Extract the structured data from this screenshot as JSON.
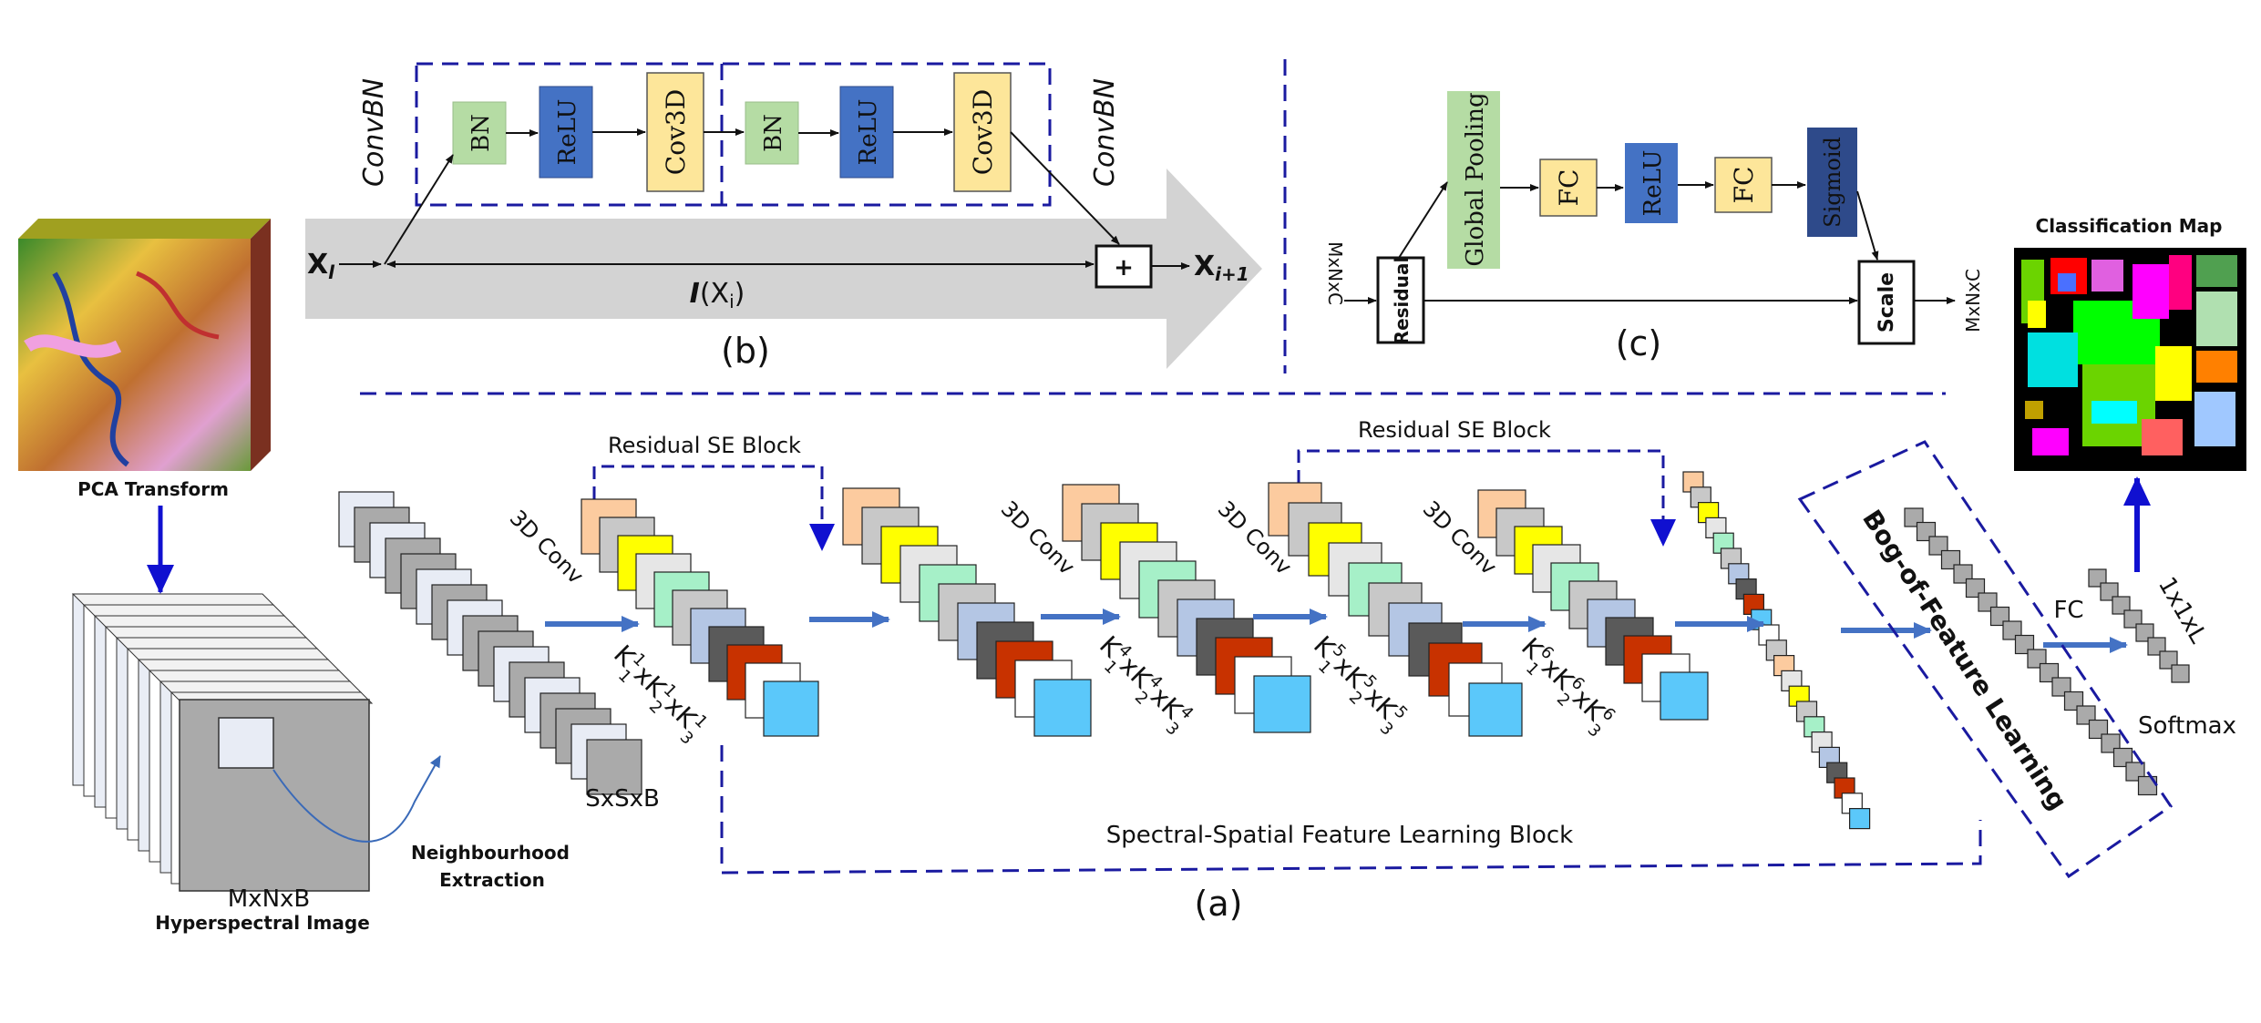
{
  "panel_b": {
    "left_label": "ConvBN",
    "right_label": "ConvBN",
    "blocks": [
      "BN",
      "ReLU",
      "Cov3D",
      "BN",
      "ReLU",
      "Cov3D"
    ],
    "input_main": "X",
    "input_sub": "l",
    "output_main": "X",
    "output_sub": "i+1",
    "identity_main": "I",
    "identity_mid": "(X",
    "identity_sub": "i",
    "identity_end": ")",
    "sum_symbol": "+",
    "caption": "(b)"
  },
  "panel_c": {
    "input_dim": "MxNxC",
    "residual": "Residual",
    "global_pooling": "Global Pooling",
    "fc1": "FC",
    "relu": "ReLU",
    "fc2": "FC",
    "sigmoid": "Sigmoid",
    "scale": "Scale",
    "output_dim": "MxNxC",
    "caption": "(c)"
  },
  "panel_a": {
    "pca_label": "PCA Transform",
    "hsi_dim": "MxNxB",
    "hsi_label": "Hyperspectral Image",
    "neigh_line1": "Neighbourhood",
    "neigh_line2": "Extraction",
    "patch_dim": "SxSxB",
    "se_block_1": "Residual SE Block",
    "se_block_2": "Residual SE Block",
    "conv_labels": [
      "3D  Conv",
      "3D  Conv",
      "3D  Conv",
      "3D  Conv"
    ],
    "kernels": [
      {
        "k": "K",
        "sup": "1",
        "s1": "1",
        "x1": "xK",
        "sup2": "1",
        "s2": "2",
        "x2": "xK",
        "sup3": "1",
        "s3": "3"
      },
      {
        "k": "K",
        "sup": "4",
        "s1": "1",
        "x1": "xK",
        "sup2": "4",
        "s2": "2",
        "x2": "xK",
        "sup3": "4",
        "s3": "3"
      },
      {
        "k": "K",
        "sup": "5",
        "s1": "1",
        "x1": "xK",
        "sup2": "5",
        "s2": "2",
        "x2": "xK",
        "sup3": "5",
        "s3": "3"
      },
      {
        "k": "K",
        "sup": "6",
        "s1": "1",
        "x1": "xK",
        "sup2": "6",
        "s2": "2",
        "x2": "xK",
        "sup3": "6",
        "s3": "3"
      }
    ],
    "ssfl_label": "Spectral-Spatial Feature Learning Block",
    "bof_label": "Bog-of-Feature Learning",
    "fc_label": "FC",
    "output_dim": "1x1xL",
    "softmax": "Softmax",
    "class_map": "Classification Map",
    "caption": "(a)"
  },
  "colors": {
    "dashed": "#1a1aa0",
    "bn": "#b5dca4",
    "relu": "#4472c4",
    "conv": "#fde69a",
    "sigmoid": "#2e4a8a",
    "arrow_blue": "#4472c4",
    "grey_arrow": "#d3d3d3"
  }
}
